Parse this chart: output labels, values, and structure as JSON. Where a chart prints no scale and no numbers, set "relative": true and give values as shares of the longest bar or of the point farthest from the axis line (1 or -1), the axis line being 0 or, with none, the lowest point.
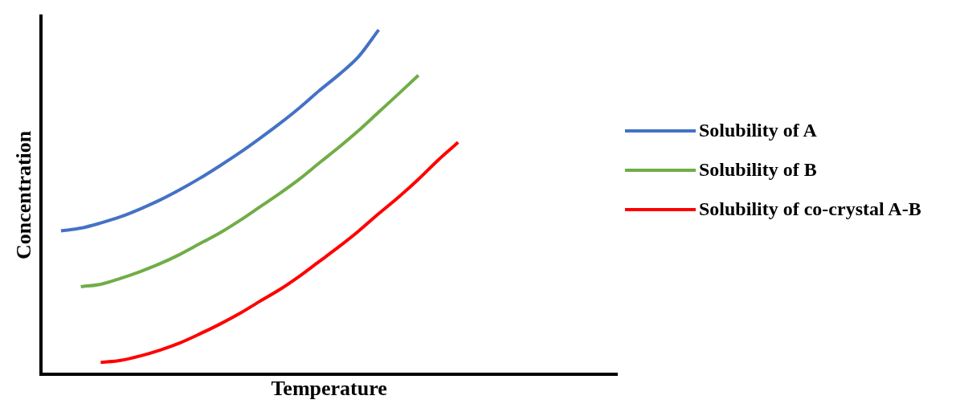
{
  "chart_data": {
    "type": "line",
    "xlabel": "Temperature",
    "ylabel": "Concentration",
    "relative": true,
    "grid": false,
    "legend": "right",
    "marker": "none",
    "line_style": "solid",
    "categories": [
      null,
      null,
      null,
      null,
      null,
      null,
      null,
      null,
      null,
      null,
      null,
      null,
      null,
      null,
      null,
      null,
      null,
      null,
      null,
      null,
      null,
      null,
      null,
      null,
      null,
      null,
      null,
      null,
      null,
      null
    ],
    "series": [
      {
        "name": "Solubility of A",
        "color": "#4472c4",
        "values": [
          null,
          0.416,
          0.424,
          0.439,
          0.457,
          0.48,
          0.506,
          0.536,
          0.569,
          0.605,
          0.643,
          0.684,
          0.727,
          0.773,
          0.823,
          0.87,
          0.923,
          1.0,
          null,
          null,
          null,
          null,
          null,
          null,
          null,
          null,
          null,
          null,
          null,
          null
        ]
      },
      {
        "name": "Solubility of B",
        "color": "#70ad47",
        "values": [
          null,
          null,
          0.254,
          0.261,
          0.278,
          0.298,
          0.321,
          0.348,
          0.379,
          0.41,
          0.446,
          0.485,
          0.524,
          0.566,
          0.613,
          0.659,
          0.708,
          0.761,
          0.814,
          0.868,
          null,
          null,
          null,
          null,
          null,
          null,
          null,
          null,
          null,
          null
        ]
      },
      {
        "name": "Solubility of co-crystal A-B",
        "color": "#ff0000",
        "values": [
          null,
          null,
          null,
          0.034,
          0.04,
          0.053,
          0.07,
          0.091,
          0.117,
          0.145,
          0.176,
          0.211,
          0.245,
          0.284,
          0.327,
          0.37,
          0.416,
          0.466,
          0.514,
          0.566,
          0.622,
          0.673,
          null,
          null,
          null,
          null,
          null,
          null,
          null,
          null
        ]
      }
    ]
  }
}
